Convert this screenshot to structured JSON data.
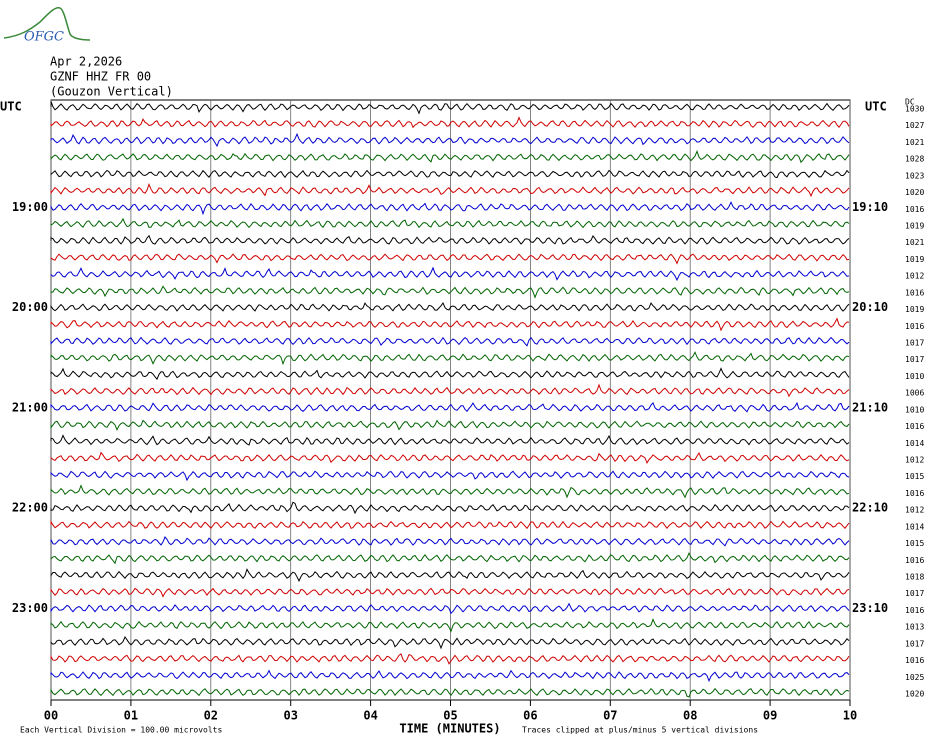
{
  "logo": "OFGC",
  "header": {
    "date": "Apr 2,2026",
    "station": "GZNF HHZ FR 00",
    "location": "(Gouzon Vertical)"
  },
  "dc_label": "DC",
  "rows": [
    {
      "left": "UTC",
      "right": "UTC",
      "offset": "1030"
    },
    {
      "offset": "1027"
    },
    {
      "offset": "1021"
    },
    {
      "offset": "1028"
    },
    {
      "offset": "1023"
    },
    {
      "offset": "1020"
    },
    {
      "left": "19:00",
      "right": "19:10",
      "offset": "1016"
    },
    {
      "offset": "1019"
    },
    {
      "offset": "1021"
    },
    {
      "offset": "1019"
    },
    {
      "offset": "1012"
    },
    {
      "offset": "1016"
    },
    {
      "left": "20:00",
      "right": "20:10",
      "offset": "1019"
    },
    {
      "offset": "1016"
    },
    {
      "offset": "1017"
    },
    {
      "offset": "1017"
    },
    {
      "offset": "1010"
    },
    {
      "offset": "1006"
    },
    {
      "left": "21:00",
      "right": "21:10",
      "offset": "1010"
    },
    {
      "offset": "1016"
    },
    {
      "offset": "1014"
    },
    {
      "offset": "1012"
    },
    {
      "offset": "1015"
    },
    {
      "offset": "1016"
    },
    {
      "left": "22:00",
      "right": "22:10",
      "offset": "1012"
    },
    {
      "offset": "1014"
    },
    {
      "offset": "1015"
    },
    {
      "offset": "1016"
    },
    {
      "offset": "1018"
    },
    {
      "offset": "1017"
    },
    {
      "left": "23:00",
      "right": "23:10",
      "offset": "1016"
    },
    {
      "offset": "1013"
    },
    {
      "offset": "1017"
    },
    {
      "offset": "1016"
    },
    {
      "offset": "1025"
    },
    {
      "offset": "1020"
    }
  ],
  "x_axis": {
    "ticks": [
      "00",
      "01",
      "02",
      "03",
      "04",
      "05",
      "06",
      "07",
      "08",
      "09",
      "10"
    ],
    "title": "TIME (MINUTES)"
  },
  "footer": {
    "scale_note": "Each Vertical Division =  100.00 microvolts",
    "clip_note": "Traces clipped at plus/minus 5 vertical divisions"
  }
}
